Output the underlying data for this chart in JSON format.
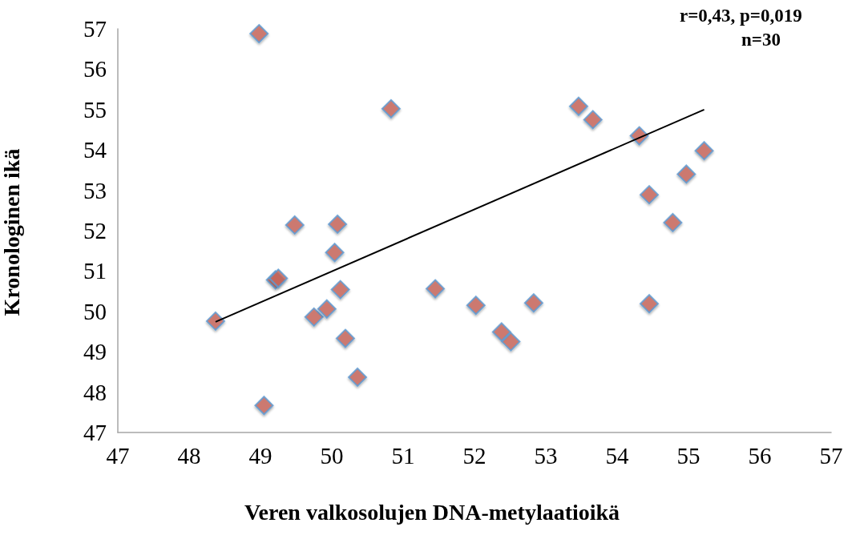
{
  "chart_data": {
    "type": "scatter",
    "xlabel": "Veren valkosolujen DNA-metylaatioikä",
    "ylabel": "Kronologinen ikä",
    "annotations": [
      "r=0,43, p=0,019",
      "n=30"
    ],
    "xlim": [
      47,
      57
    ],
    "xticks": [
      47,
      48,
      49,
      50,
      51,
      52,
      53,
      54,
      55,
      56,
      57
    ],
    "ylim": [
      47,
      57
    ],
    "yticks": [
      47,
      48,
      49,
      50,
      51,
      52,
      53,
      54,
      55,
      56,
      57
    ],
    "grid": false,
    "series": [
      {
        "marker": "diamond",
        "color": "#c9665b",
        "x": [
          48.98,
          50.83,
          49.48,
          50.08,
          50.04,
          49.21,
          49.25,
          50.12,
          51.45,
          48.37,
          49.75,
          49.93,
          50.19,
          50.36,
          49.05,
          53.46,
          53.66,
          54.31,
          55.22,
          54.97,
          54.45,
          54.78,
          54.45,
          52.02,
          52.83,
          52.38,
          52.51
        ],
        "values": [
          56.88,
          55.02,
          52.14,
          52.16,
          51.46,
          50.78,
          50.82,
          50.54,
          50.56,
          49.76,
          49.86,
          50.06,
          49.33,
          48.37,
          47.67,
          55.08,
          54.75,
          54.35,
          53.98,
          53.4,
          52.89,
          52.2,
          50.19,
          50.15,
          50.21,
          49.49,
          49.25
        ]
      },
      {
        "type": "line",
        "marker": "none",
        "color": "#000000",
        "line_style": "solid",
        "x": [
          48.37,
          55.22
        ],
        "values": [
          49.74,
          55.0
        ]
      }
    ]
  }
}
